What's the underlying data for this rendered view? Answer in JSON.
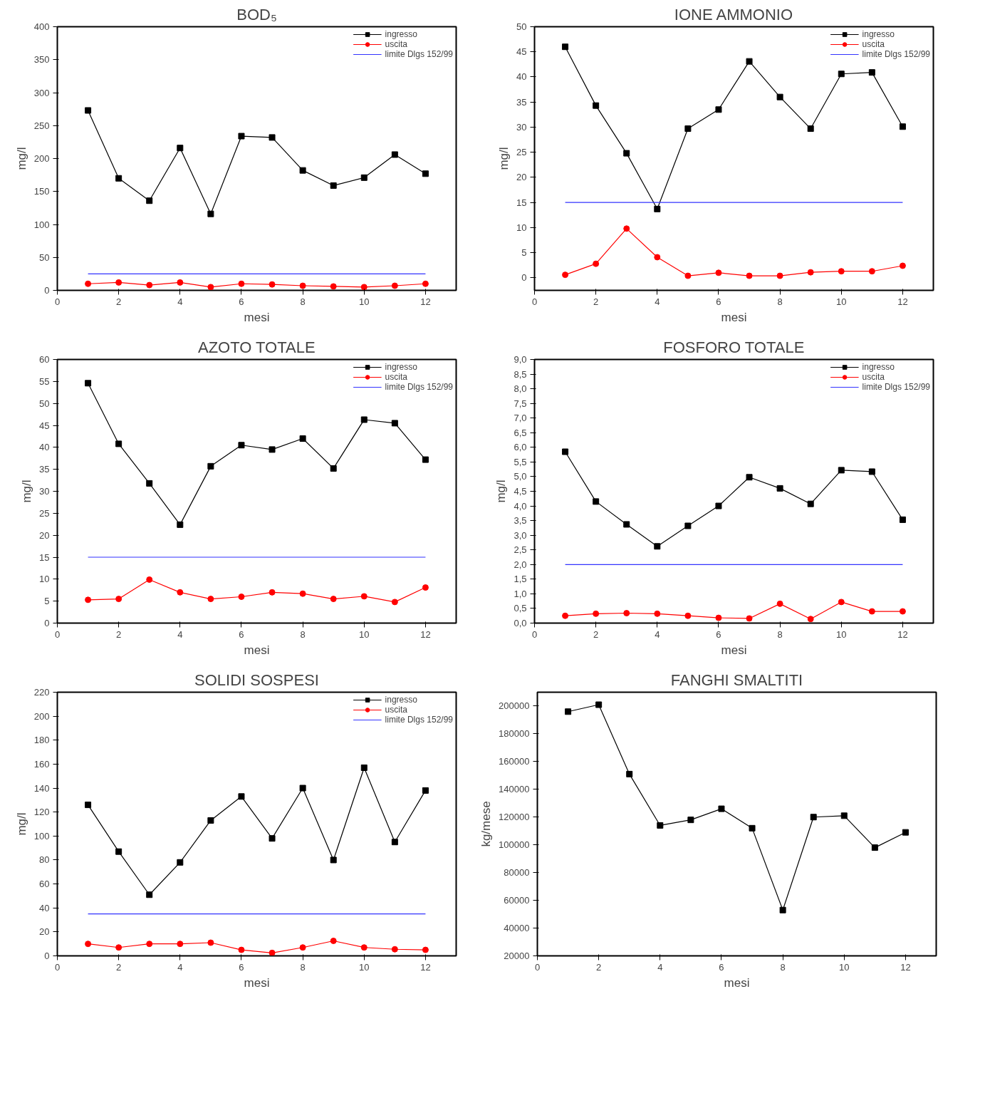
{
  "chart_data": [
    {
      "type": "line",
      "title": "BOD₅",
      "xlabel": "mesi",
      "ylabel": "mg/l",
      "xlim": [
        0,
        13
      ],
      "xticks": [
        0,
        2,
        4,
        6,
        8,
        10,
        12
      ],
      "ylim": [
        0,
        400
      ],
      "yticks": [
        0,
        50,
        100,
        150,
        200,
        250,
        300,
        350,
        400
      ],
      "legend": "top right",
      "x": [
        1,
        2,
        3,
        4,
        5,
        6,
        7,
        8,
        9,
        10,
        11,
        12
      ],
      "series": [
        {
          "name": "ingresso",
          "color": "#000000",
          "marker": "square",
          "values": [
            273,
            170,
            136,
            216,
            116,
            234,
            232,
            182,
            159,
            171,
            206,
            177
          ]
        },
        {
          "name": "uscita",
          "color": "#ff0000",
          "marker": "circle",
          "values": [
            10,
            12,
            8,
            12,
            5,
            10,
            9,
            7,
            6,
            5,
            7,
            10
          ]
        },
        {
          "name": "limite Dlgs 152/99",
          "color": "#3333ff",
          "marker": "none",
          "values": [
            25,
            25,
            25,
            25,
            25,
            25,
            25,
            25,
            25,
            25,
            25,
            25
          ]
        }
      ]
    },
    {
      "type": "line",
      "title": "IONE AMMONIO",
      "xlabel": "mesi",
      "ylabel": "mg/l",
      "xlim": [
        0,
        13
      ],
      "xticks": [
        0,
        2,
        4,
        6,
        8,
        10,
        12
      ],
      "ylim": [
        -2.5,
        50
      ],
      "yticks": [
        0,
        5,
        10,
        15,
        20,
        25,
        30,
        35,
        40,
        45,
        50
      ],
      "legend": "top right",
      "x": [
        1,
        2,
        3,
        4,
        5,
        6,
        7,
        8,
        9,
        10,
        11,
        12
      ],
      "series": [
        {
          "name": "ingresso",
          "color": "#000000",
          "marker": "square",
          "values": [
            46,
            34.3,
            24.8,
            13.7,
            29.7,
            33.5,
            43.1,
            36,
            29.7,
            40.6,
            40.9,
            30.1
          ]
        },
        {
          "name": "uscita",
          "color": "#ff0000",
          "marker": "circle",
          "values": [
            0.6,
            2.8,
            9.8,
            4.1,
            0.4,
            1,
            0.4,
            0.4,
            1.1,
            1.3,
            1.3,
            2.4
          ]
        },
        {
          "name": "limite Dlgs 152/99",
          "color": "#3333ff",
          "marker": "none",
          "values": [
            15,
            15,
            15,
            15,
            15,
            15,
            15,
            15,
            15,
            15,
            15,
            15
          ]
        }
      ]
    },
    {
      "type": "line",
      "title": "AZOTO TOTALE",
      "xlabel": "mesi",
      "ylabel": "mg/l",
      "xlim": [
        0,
        13
      ],
      "xticks": [
        0,
        2,
        4,
        6,
        8,
        10,
        12
      ],
      "ylim": [
        0,
        60
      ],
      "yticks": [
        0,
        5,
        10,
        15,
        20,
        25,
        30,
        35,
        40,
        45,
        50,
        55,
        60
      ],
      "legend": "top right",
      "x": [
        1,
        2,
        3,
        4,
        5,
        6,
        7,
        8,
        9,
        10,
        11,
        12
      ],
      "series": [
        {
          "name": "ingresso",
          "color": "#000000",
          "marker": "square",
          "values": [
            54.6,
            40.8,
            31.8,
            22.4,
            35.7,
            40.5,
            39.5,
            42,
            35.2,
            46.3,
            45.5,
            37.2
          ]
        },
        {
          "name": "uscita",
          "color": "#ff0000",
          "marker": "circle",
          "values": [
            5.3,
            5.5,
            9.9,
            7,
            5.5,
            6,
            7,
            6.7,
            5.5,
            6.1,
            4.8,
            8.1
          ]
        },
        {
          "name": "limite Dlgs 152/99",
          "color": "#3333ff",
          "marker": "none",
          "values": [
            15,
            15,
            15,
            15,
            15,
            15,
            15,
            15,
            15,
            15,
            15,
            15
          ]
        }
      ]
    },
    {
      "type": "line",
      "title": "FOSFORO TOTALE",
      "xlabel": "mesi",
      "ylabel": "mg/l",
      "xlim": [
        0,
        13
      ],
      "xticks": [
        0,
        2,
        4,
        6,
        8,
        10,
        12
      ],
      "ylim": [
        0,
        9
      ],
      "yticks": [
        {
          "value": 0,
          "label": "0,0"
        },
        {
          "value": 0.5,
          "label": "0,5"
        },
        {
          "value": 1,
          "label": "1,0"
        },
        {
          "value": 1.5,
          "label": "1,5"
        },
        {
          "value": 2,
          "label": "2,0"
        },
        {
          "value": 2.5,
          "label": "2,5"
        },
        {
          "value": 3,
          "label": "3,0"
        },
        {
          "value": 3.5,
          "label": "3,5"
        },
        {
          "value": 4,
          "label": "4,0"
        },
        {
          "value": 4.5,
          "label": "4,5"
        },
        {
          "value": 5,
          "label": "5,0"
        },
        {
          "value": 5.5,
          "label": "5,5"
        },
        {
          "value": 6,
          "label": "6,0"
        },
        {
          "value": 6.5,
          "label": "6,5"
        },
        {
          "value": 7,
          "label": "7,0"
        },
        {
          "value": 7.5,
          "label": "7,5"
        },
        {
          "value": 8,
          "label": "8,0"
        },
        {
          "value": 8.5,
          "label": "8,5"
        },
        {
          "value": 9,
          "label": "9,0"
        }
      ],
      "legend": "top right",
      "x": [
        1,
        2,
        3,
        4,
        5,
        6,
        7,
        8,
        9,
        10,
        11,
        12
      ],
      "series": [
        {
          "name": "ingresso",
          "color": "#000000",
          "marker": "square",
          "values": [
            5.85,
            4.15,
            3.37,
            2.62,
            3.32,
            4.0,
            4.98,
            4.6,
            4.07,
            5.22,
            5.17,
            3.53
          ]
        },
        {
          "name": "uscita",
          "color": "#ff0000",
          "marker": "circle",
          "values": [
            0.25,
            0.32,
            0.34,
            0.32,
            0.25,
            0.18,
            0.16,
            0.66,
            0.14,
            0.72,
            0.4,
            0.4
          ]
        },
        {
          "name": "limite Dlgs 152/99",
          "color": "#3333ff",
          "marker": "none",
          "values": [
            2,
            2,
            2,
            2,
            2,
            2,
            2,
            2,
            2,
            2,
            2,
            2
          ]
        }
      ]
    },
    {
      "type": "line",
      "title": "SOLIDI SOSPESI",
      "xlabel": "mesi",
      "ylabel": "mg/l",
      "xlim": [
        0,
        13
      ],
      "xticks": [
        0,
        2,
        4,
        6,
        8,
        10,
        12
      ],
      "ylim": [
        0,
        220
      ],
      "yticks": [
        0,
        20,
        40,
        60,
        80,
        100,
        120,
        140,
        160,
        180,
        200,
        220
      ],
      "legend": "top right",
      "x": [
        1,
        2,
        3,
        4,
        5,
        6,
        7,
        8,
        9,
        10,
        11,
        12
      ],
      "series": [
        {
          "name": "ingresso",
          "color": "#000000",
          "marker": "square",
          "values": [
            126,
            87,
            51,
            78,
            113,
            133,
            98,
            140,
            80,
            157,
            95,
            138
          ]
        },
        {
          "name": "uscita",
          "color": "#ff0000",
          "marker": "circle",
          "values": [
            10,
            7,
            10,
            10,
            11,
            5,
            2.5,
            7,
            12.5,
            7,
            5.5,
            5
          ]
        },
        {
          "name": "limite Dlgs 152/99",
          "color": "#3333ff",
          "marker": "none",
          "values": [
            35,
            35,
            35,
            35,
            35,
            35,
            35,
            35,
            35,
            35,
            35,
            35
          ]
        }
      ]
    },
    {
      "type": "line",
      "title": "FANGHI SMALTITI",
      "xlabel": "mesi",
      "ylabel": "kg/mese",
      "xlim": [
        0,
        13
      ],
      "xticks": [
        0,
        2,
        4,
        6,
        8,
        10,
        12
      ],
      "ylim": [
        20000,
        210000
      ],
      "yticks": [
        20000,
        40000,
        60000,
        80000,
        100000,
        120000,
        140000,
        160000,
        180000,
        200000
      ],
      "x": [
        1,
        2,
        3,
        4,
        5,
        6,
        7,
        8,
        9,
        10,
        11,
        12
      ],
      "series": [
        {
          "color": "#000000",
          "marker": "square",
          "values": [
            196000,
            201000,
            151000,
            114000,
            118000,
            126000,
            112000,
            53000,
            120000,
            121000,
            98000,
            109000
          ]
        }
      ]
    }
  ]
}
